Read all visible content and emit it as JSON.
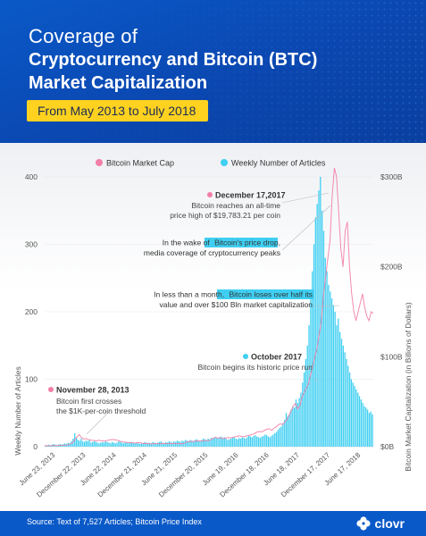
{
  "header": {
    "title_line1": "Coverage of",
    "title_line2": "Cryptocurrency and Bitcoin (BTC)",
    "title_line3": "Market Capitalization",
    "date_range": "From May 2013 to July 2018"
  },
  "footer": {
    "source": "Source: Text of 7,527 Articles; Bitcoin Price Index",
    "brand": "clovr"
  },
  "colors": {
    "header_blue": "#0a59c8",
    "accent_yellow": "#ffd21f",
    "pink": "#f27ea6",
    "cyan": "#3fcff2"
  },
  "chart_data": {
    "type": "bar+line",
    "legend": {
      "placement": "top-center",
      "items": [
        "Bitcoin Market Cap",
        "Weekly Number of Articles"
      ]
    },
    "ylabel_left": "Weekly Number of Articles",
    "ylabel_right": "Bitcoin Market Capitalization (in Billions of Dollars)",
    "y_left": {
      "min": 0,
      "max": 400,
      "ticks": [
        "0",
        "100",
        "200",
        "300",
        "400"
      ]
    },
    "y_right": {
      "min": 0,
      "max": 300,
      "ticks": [
        "$0B",
        "$100B",
        "$200B",
        "$300B"
      ]
    },
    "x_ticks": [
      "June 23, 2013",
      "December 22, 2013",
      "June 22, 2014",
      "December 21, 2014",
      "June 21, 2015",
      "December 20, 2015",
      "June 19, 2016",
      "December 18, 2016",
      "June 18, 2017",
      "December 17, 2017",
      "June 17, 2018"
    ],
    "articles_series": {
      "name": "Weekly Number of Articles",
      "values": [
        2,
        2,
        3,
        2,
        3,
        4,
        3,
        2,
        3,
        4,
        3,
        4,
        5,
        4,
        6,
        5,
        8,
        12,
        20,
        14,
        10,
        9,
        12,
        8,
        7,
        9,
        8,
        10,
        6,
        7,
        8,
        7,
        6,
        5,
        6,
        7,
        6,
        8,
        7,
        6,
        5,
        7,
        6,
        5,
        6,
        8,
        7,
        6,
        5,
        7,
        6,
        5,
        6,
        7,
        6,
        5,
        6,
        5,
        4,
        6,
        5,
        7,
        6,
        5,
        6,
        5,
        7,
        6,
        5,
        6,
        7,
        8,
        6,
        5,
        7,
        6,
        8,
        7,
        6,
        8,
        7,
        9,
        8,
        7,
        9,
        8,
        10,
        9,
        8,
        10,
        9,
        8,
        10,
        11,
        9,
        8,
        10,
        12,
        11,
        10,
        12,
        11,
        13,
        12,
        14,
        13,
        12,
        14,
        15,
        13,
        14,
        12,
        10,
        11,
        12,
        13,
        14,
        12,
        11,
        13,
        12,
        14,
        13,
        12,
        14,
        16,
        15,
        14,
        16,
        17,
        15,
        14,
        13,
        15,
        16,
        18,
        17,
        15,
        14,
        16,
        18,
        20,
        22,
        25,
        28,
        30,
        35,
        40,
        50,
        45,
        48,
        55,
        60,
        58,
        70,
        65,
        72,
        80,
        95,
        110,
        130,
        150,
        180,
        220,
        260,
        300,
        340,
        360,
        380,
        400,
        350,
        320,
        280,
        260,
        240,
        230,
        220,
        210,
        200,
        180,
        190,
        170,
        160,
        150,
        140,
        130,
        120,
        110,
        100,
        95,
        90,
        85,
        80,
        75,
        70,
        65,
        60,
        58,
        55,
        50,
        52,
        48
      ]
    },
    "market_cap_series": {
      "name": "Bitcoin Market Cap",
      "values": [
        1.2,
        1.1,
        1.0,
        1.0,
        1.1,
        1.2,
        1.3,
        1.4,
        1.5,
        1.6,
        1.8,
        2.2,
        3.0,
        4.5,
        8.0,
        11.0,
        13.5,
        10.0,
        8.5,
        9.0,
        8.0,
        7.5,
        7.0,
        6.8,
        6.5,
        7.2,
        6.6,
        6.5,
        6.2,
        7.0,
        7.5,
        7.8,
        8.0,
        7.5,
        6.8,
        6.0,
        5.5,
        5.0,
        4.8,
        4.5,
        4.6,
        4.2,
        4.0,
        4.5,
        4.3,
        3.8,
        3.5,
        3.6,
        3.4,
        3.0,
        3.2,
        3.4,
        3.3,
        3.2,
        3.5,
        3.6,
        3.3,
        3.4,
        3.3,
        3.6,
        3.5,
        3.3,
        3.4,
        3.5,
        3.4,
        4.0,
        5.5,
        5.8,
        5.6,
        6.0,
        6.2,
        6.4,
        6.3,
        6.5,
        6.8,
        7.0,
        6.7,
        8.0,
        9.5,
        10.5,
        9.5,
        10.0,
        9.0,
        9.2,
        9.8,
        10.2,
        9.8,
        10.4,
        11.0,
        11.5,
        12.0,
        11.5,
        11.0,
        11.8,
        12.2,
        12.8,
        13.5,
        14.5,
        16.0,
        16.8,
        16.5,
        17.0,
        18.5,
        19.5,
        20.0,
        18.0,
        20.5,
        22.0,
        24.0,
        25.5,
        24.5,
        27.0,
        30.0,
        35.0,
        40.0,
        45.0,
        48.0,
        42.0,
        45.0,
        55.0,
        60.0,
        65.0,
        70.0,
        80.0,
        90.0,
        100.0,
        110.0,
        125.0,
        140.0,
        170.0,
        190.0,
        210.0,
        230.0,
        280.0,
        310.0,
        300.0,
        260.0,
        220.0,
        200.0,
        240.0,
        250.0,
        200.0,
        170.0,
        150.0,
        140.0,
        150.0,
        160.0,
        170.0,
        155.0,
        145.0,
        140.0,
        150.0,
        148.0
      ]
    },
    "annotations": [
      {
        "title": "November 28, 2013",
        "text_lines": [
          "Bitcoin first crosses",
          "the $1K-per-coin threshold"
        ]
      },
      {
        "title": "December 17,2017",
        "text_lines": [
          "Bitcoin reaches an all-time",
          "price high of $19,783.21 per coin"
        ]
      },
      {
        "title": "",
        "pre": "In the wake of",
        "highlight": "Bitcoin's price drop",
        "post": ",",
        "line2": "media coverage of cryptocurrency peaks"
      },
      {
        "title": "",
        "pre": "In less than a month,",
        "highlight": "Bitcoin loses over half its",
        "post": "",
        "line2": "value and over $100 Bln market capitalization"
      },
      {
        "title": "October 2017",
        "text_lines": [
          "Bitcoin begins its historic price run"
        ]
      }
    ]
  }
}
